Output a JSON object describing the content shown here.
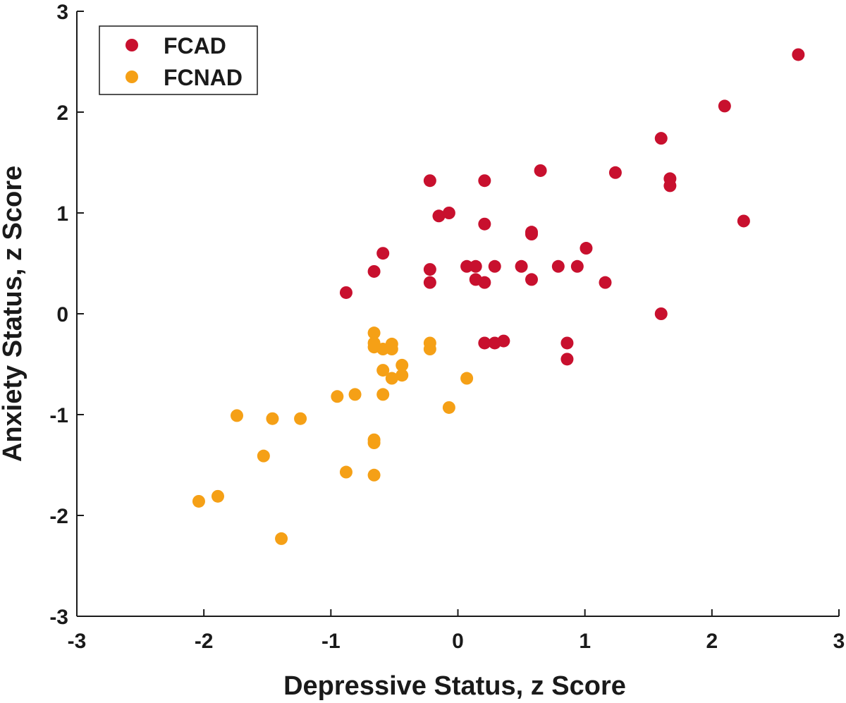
{
  "chart_data": {
    "type": "scatter",
    "xlabel": "Depressive Status, z Score",
    "ylabel": "Anxiety Status, z Score",
    "xlim": [
      -3,
      3
    ],
    "ylim": [
      -3,
      3
    ],
    "xticks": [
      -3,
      -2,
      -1,
      0,
      1,
      2,
      3
    ],
    "yticks": [
      -3,
      -2,
      -1,
      0,
      1,
      2,
      3
    ],
    "xtick_labels": [
      "-3",
      "-2",
      "-1",
      "0",
      "1",
      "2",
      "3"
    ],
    "ytick_labels": [
      "-3",
      "-2",
      "-1",
      "0",
      "1",
      "2",
      "3"
    ],
    "grid": false,
    "legend_position": "top-left",
    "series": [
      {
        "name": "FCAD",
        "color": "#C8102E",
        "points": [
          [
            2.68,
            2.57
          ],
          [
            2.1,
            2.06
          ],
          [
            1.6,
            1.74
          ],
          [
            1.67,
            1.34
          ],
          [
            1.67,
            1.27
          ],
          [
            1.24,
            1.4
          ],
          [
            2.25,
            0.92
          ],
          [
            0.65,
            1.42
          ],
          [
            0.21,
            1.32
          ],
          [
            -0.22,
            1.32
          ],
          [
            -0.15,
            0.97
          ],
          [
            -0.07,
            1.0
          ],
          [
            0.21,
            0.89
          ],
          [
            0.58,
            0.81
          ],
          [
            0.58,
            0.79
          ],
          [
            1.01,
            0.65
          ],
          [
            -0.59,
            0.6
          ],
          [
            -0.66,
            0.42
          ],
          [
            -0.22,
            0.44
          ],
          [
            0.07,
            0.47
          ],
          [
            0.14,
            0.47
          ],
          [
            0.29,
            0.47
          ],
          [
            0.5,
            0.47
          ],
          [
            0.79,
            0.47
          ],
          [
            0.94,
            0.47
          ],
          [
            -0.22,
            0.31
          ],
          [
            0.14,
            0.34
          ],
          [
            0.21,
            0.31
          ],
          [
            0.58,
            0.34
          ],
          [
            1.16,
            0.31
          ],
          [
            -0.88,
            0.21
          ],
          [
            1.6,
            0.0
          ],
          [
            0.21,
            -0.29
          ],
          [
            0.29,
            -0.29
          ],
          [
            0.36,
            -0.27
          ],
          [
            0.86,
            -0.29
          ],
          [
            0.86,
            -0.45
          ]
        ]
      },
      {
        "name": "FCNAD",
        "color": "#F5A016",
        "points": [
          [
            -0.66,
            -0.19
          ],
          [
            -0.66,
            -0.29
          ],
          [
            -0.66,
            -0.33
          ],
          [
            -0.59,
            -0.35
          ],
          [
            -0.52,
            -0.3
          ],
          [
            -0.52,
            -0.35
          ],
          [
            -0.22,
            -0.29
          ],
          [
            -0.22,
            -0.35
          ],
          [
            -0.44,
            -0.51
          ],
          [
            -0.59,
            -0.56
          ],
          [
            -0.44,
            -0.61
          ],
          [
            -0.52,
            -0.64
          ],
          [
            0.07,
            -0.64
          ],
          [
            -0.95,
            -0.82
          ],
          [
            -0.81,
            -0.8
          ],
          [
            -0.59,
            -0.8
          ],
          [
            -0.07,
            -0.93
          ],
          [
            -1.74,
            -1.01
          ],
          [
            -1.46,
            -1.04
          ],
          [
            -1.24,
            -1.04
          ],
          [
            -0.66,
            -1.25
          ],
          [
            -0.66,
            -1.28
          ],
          [
            -1.53,
            -1.41
          ],
          [
            -0.88,
            -1.57
          ],
          [
            -0.66,
            -1.6
          ],
          [
            -1.89,
            -1.81
          ],
          [
            -2.04,
            -1.86
          ],
          [
            -1.39,
            -2.23
          ]
        ]
      }
    ]
  }
}
